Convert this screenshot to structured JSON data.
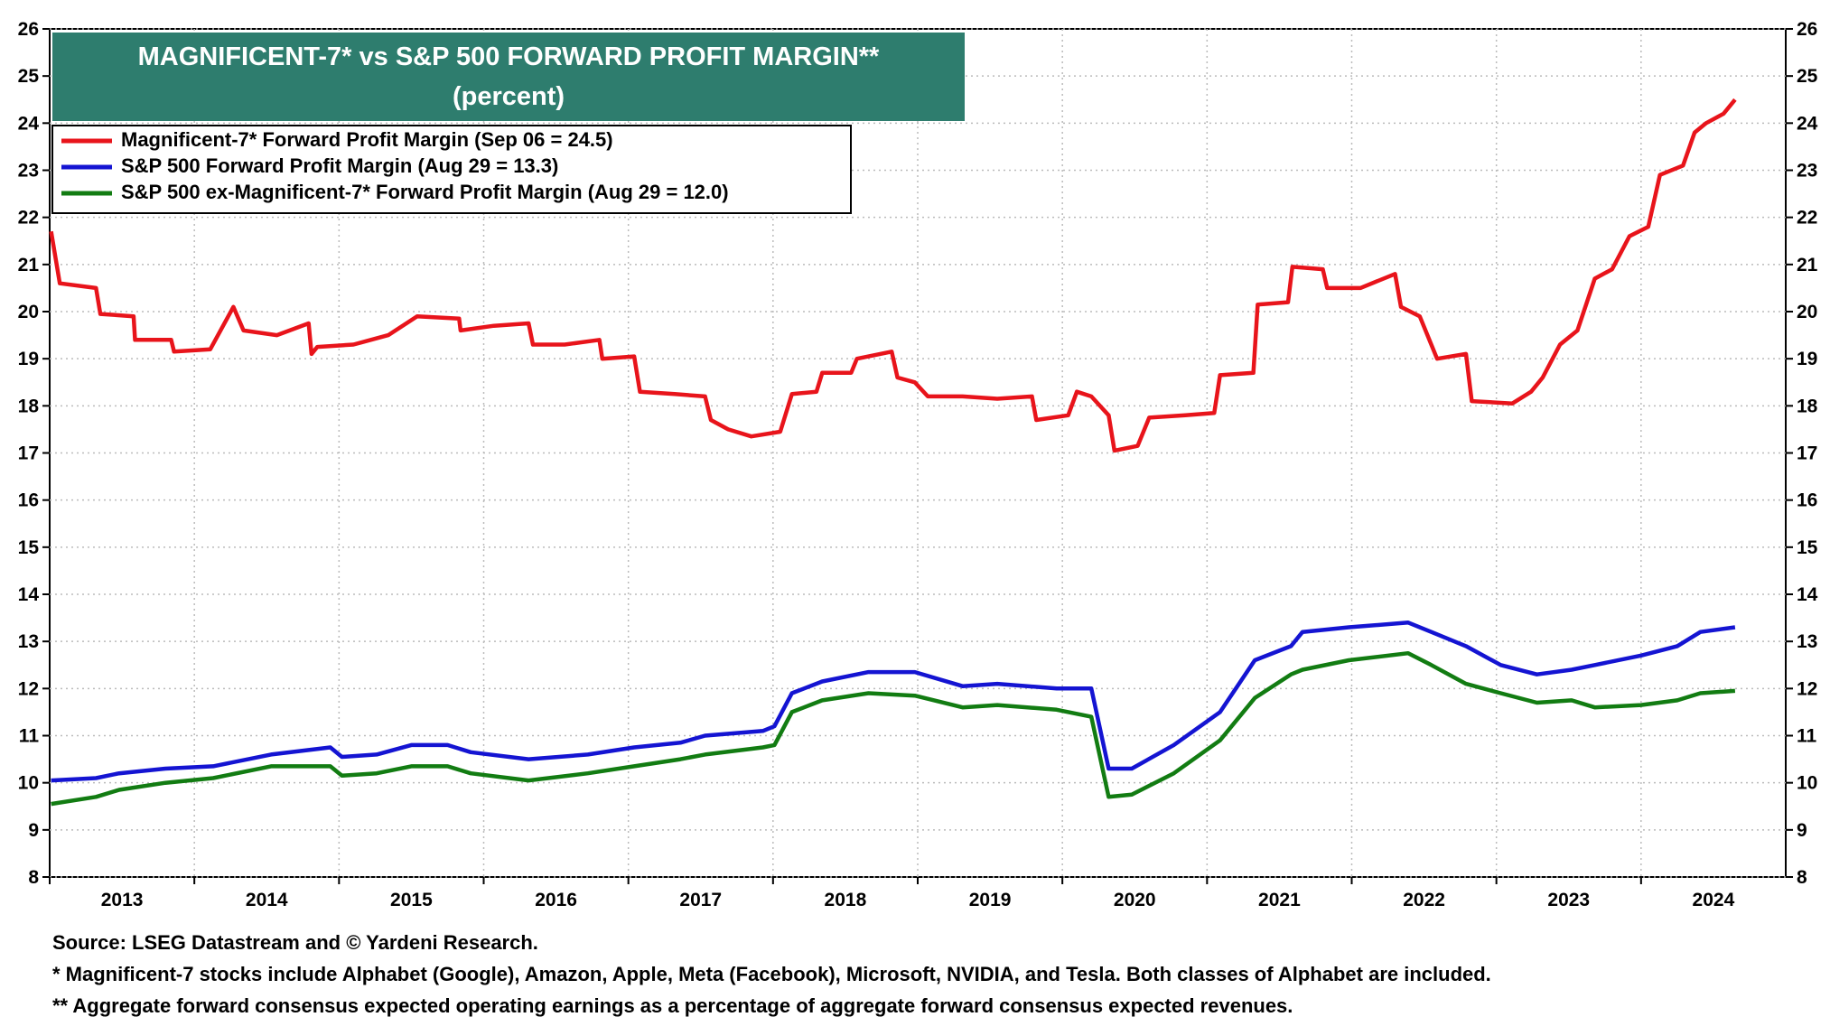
{
  "chart_data": {
    "type": "line",
    "title": "MAGNIFICENT-7* vs S&P 500 FORWARD PROFIT MARGIN**",
    "subtitle": "(percent)",
    "source": "Source: LSEG Datastream and © Yardeni Research.",
    "notes": [
      "* Magnificent-7 stocks include Alphabet (Google), Amazon, Apple, Meta (Facebook), Microsoft, NVIDIA, and Tesla. Both classes of Alphabet are included.",
      "** Aggregate forward consensus expected operating earnings as a percentage of aggregate forward consensus expected revenues."
    ],
    "xlim": [
      2013,
      2025
    ],
    "xticks": [
      2013,
      2014,
      2015,
      2016,
      2017,
      2018,
      2019,
      2020,
      2021,
      2022,
      2023,
      2024
    ],
    "ylim": [
      8,
      26
    ],
    "yticks": [
      8,
      9,
      10,
      11,
      12,
      13,
      14,
      15,
      16,
      17,
      18,
      19,
      20,
      21,
      22,
      23,
      24,
      25,
      26
    ],
    "grid": true,
    "legend": "upper left",
    "series": [
      {
        "name": "Magnificent-7* Forward Profit Margin (Sep 06 = 24.5)",
        "color": "#e8141b",
        "x": [
          2013.01,
          2013.07,
          2013.32,
          2013.35,
          2013.58,
          2013.59,
          2013.84,
          2013.86,
          2014.11,
          2014.27,
          2014.34,
          2014.57,
          2014.79,
          2014.81,
          2014.85,
          2015.1,
          2015.34,
          2015.54,
          2015.83,
          2015.84,
          2016.07,
          2016.31,
          2016.34,
          2016.56,
          2016.8,
          2016.82,
          2017.04,
          2017.08,
          2017.32,
          2017.53,
          2017.57,
          2017.69,
          2017.85,
          2018.05,
          2018.13,
          2018.3,
          2018.34,
          2018.54,
          2018.58,
          2018.82,
          2018.86,
          2018.98,
          2019.07,
          2019.31,
          2019.55,
          2019.79,
          2019.82,
          2020.04,
          2020.1,
          2020.2,
          2020.32,
          2020.36,
          2020.52,
          2020.6,
          2020.85,
          2021.05,
          2021.09,
          2021.32,
          2021.35,
          2021.56,
          2021.59,
          2021.8,
          2021.83,
          2022.06,
          2022.3,
          2022.34,
          2022.47,
          2022.59,
          2022.79,
          2022.83,
          2023.11,
          2023.24,
          2023.32,
          2023.44,
          2023.56,
          2023.68,
          2023.8,
          2023.92,
          2024.05,
          2024.13,
          2024.29,
          2024.37,
          2024.45,
          2024.57,
          2024.65
        ],
        "values": [
          21.7,
          20.6,
          20.5,
          19.95,
          19.9,
          19.4,
          19.4,
          19.15,
          19.2,
          20.1,
          19.6,
          19.5,
          19.75,
          19.1,
          19.25,
          19.3,
          19.5,
          19.9,
          19.85,
          19.6,
          19.7,
          19.75,
          19.3,
          19.3,
          19.4,
          19.0,
          19.05,
          18.3,
          18.25,
          18.2,
          17.7,
          17.5,
          17.35,
          17.45,
          18.25,
          18.3,
          18.7,
          18.7,
          19.0,
          19.15,
          18.6,
          18.5,
          18.2,
          18.2,
          18.15,
          18.2,
          17.7,
          17.8,
          18.3,
          18.2,
          17.8,
          17.05,
          17.15,
          17.75,
          17.8,
          17.85,
          18.65,
          18.7,
          20.15,
          20.2,
          20.95,
          20.9,
          20.5,
          20.5,
          20.8,
          20.1,
          19.9,
          19.0,
          19.1,
          18.1,
          18.05,
          18.3,
          18.6,
          19.3,
          19.6,
          20.7,
          20.9,
          21.6,
          21.8,
          22.9,
          23.1,
          23.8,
          24.0,
          24.2,
          24.5
        ]
      },
      {
        "name": "S&P 500 Forward Profit Margin (Aug 29 = 13.3)",
        "color": "#1414d2",
        "x": [
          2013.01,
          2013.32,
          2013.48,
          2013.8,
          2014.13,
          2014.53,
          2014.94,
          2015.02,
          2015.26,
          2015.5,
          2015.75,
          2015.91,
          2016.31,
          2016.72,
          2017.04,
          2017.36,
          2017.53,
          2017.93,
          2018.01,
          2018.13,
          2018.34,
          2018.66,
          2018.98,
          2019.31,
          2019.55,
          2019.96,
          2020.2,
          2020.32,
          2020.48,
          2020.77,
          2021.09,
          2021.33,
          2021.58,
          2021.66,
          2021.98,
          2022.39,
          2022.55,
          2022.79,
          2023.03,
          2023.28,
          2023.52,
          2023.68,
          2024.0,
          2024.25,
          2024.41,
          2024.65
        ],
        "values": [
          10.05,
          10.1,
          10.2,
          10.3,
          10.35,
          10.6,
          10.75,
          10.55,
          10.6,
          10.8,
          10.8,
          10.65,
          10.5,
          10.6,
          10.75,
          10.85,
          11.0,
          11.1,
          11.2,
          11.9,
          12.15,
          12.35,
          12.35,
          12.05,
          12.1,
          12.0,
          12.0,
          10.3,
          10.3,
          10.8,
          11.5,
          12.6,
          12.9,
          13.2,
          13.3,
          13.4,
          13.2,
          12.9,
          12.5,
          12.3,
          12.4,
          12.5,
          12.7,
          12.9,
          13.2,
          13.3
        ]
      },
      {
        "name": "S&P 500 ex-Magnificent-7* Forward Profit Margin (Aug 29 = 12.0)",
        "color": "#127c12",
        "x": [
          2013.01,
          2013.32,
          2013.48,
          2013.8,
          2014.13,
          2014.53,
          2014.94,
          2015.02,
          2015.26,
          2015.5,
          2015.75,
          2015.91,
          2016.31,
          2016.72,
          2017.04,
          2017.36,
          2017.53,
          2017.93,
          2018.01,
          2018.13,
          2018.34,
          2018.66,
          2018.98,
          2019.31,
          2019.55,
          2019.96,
          2020.2,
          2020.32,
          2020.48,
          2020.77,
          2021.09,
          2021.33,
          2021.58,
          2021.66,
          2021.98,
          2022.39,
          2022.55,
          2022.79,
          2023.03,
          2023.28,
          2023.52,
          2023.68,
          2024.0,
          2024.25,
          2024.41,
          2024.65
        ],
        "values": [
          9.55,
          9.7,
          9.85,
          10.0,
          10.1,
          10.35,
          10.35,
          10.15,
          10.2,
          10.35,
          10.35,
          10.2,
          10.05,
          10.2,
          10.35,
          10.5,
          10.6,
          10.75,
          10.8,
          11.5,
          11.75,
          11.9,
          11.85,
          11.6,
          11.65,
          11.55,
          11.4,
          9.7,
          9.75,
          10.2,
          10.9,
          11.8,
          12.3,
          12.4,
          12.6,
          12.75,
          12.5,
          12.1,
          11.9,
          11.7,
          11.75,
          11.6,
          11.65,
          11.75,
          11.9,
          11.95
        ]
      }
    ]
  }
}
